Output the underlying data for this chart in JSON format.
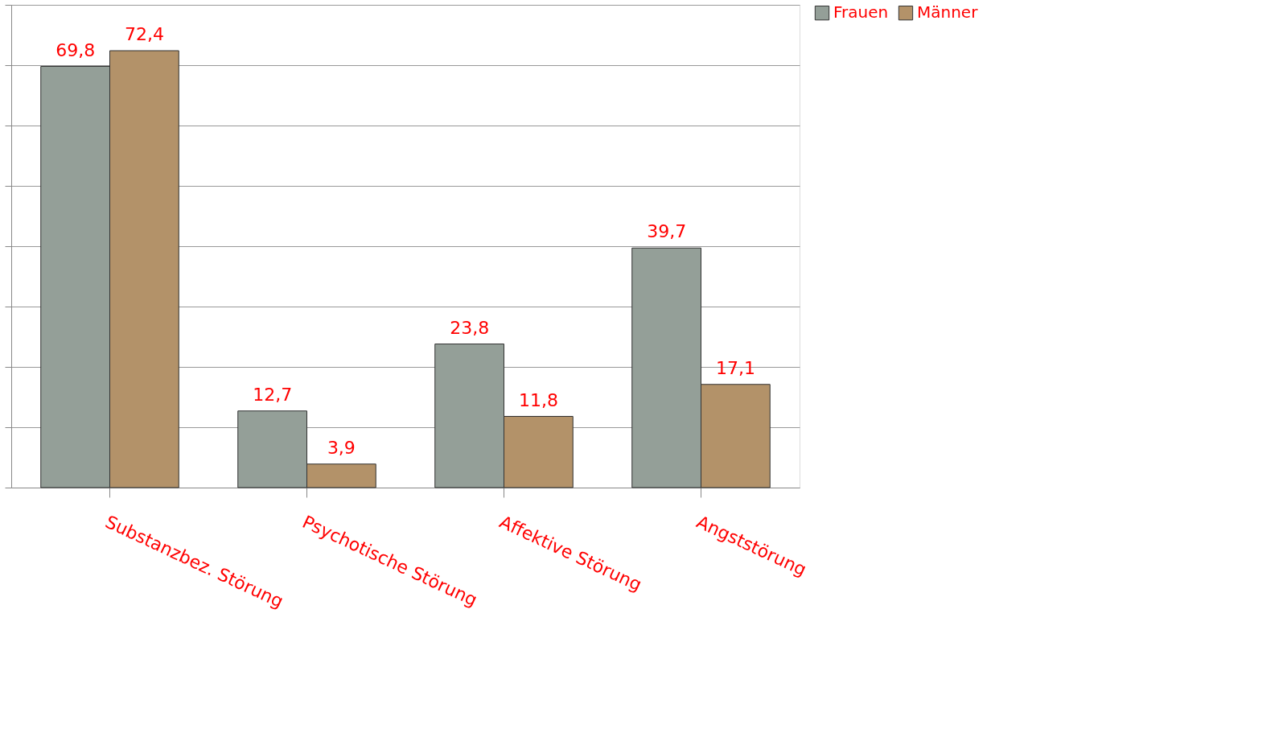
{
  "chart_data": {
    "type": "bar",
    "categories": [
      "Substanzbez. Störung",
      "Psychotische Störung",
      "Affektive Störung",
      "Angststörung"
    ],
    "series": [
      {
        "name": "Frauen",
        "color": "#949f98",
        "values": [
          69.8,
          12.7,
          23.8,
          39.7
        ],
        "value_labels": [
          "69,8",
          "12,7",
          "23,8",
          "39,7"
        ]
      },
      {
        "name": "Männer",
        "color": "#b39269",
        "values": [
          72.4,
          3.9,
          11.8,
          17.1
        ],
        "value_labels": [
          "72,4",
          "3,9",
          "11,8",
          "17,1"
        ]
      }
    ],
    "ylim": [
      0,
      80
    ],
    "yticks": [
      {
        "value": 0,
        "label": null
      },
      {
        "value": 10,
        "label": null
      },
      {
        "value": 20,
        "label": null
      },
      {
        "value": 30,
        "label": null
      },
      {
        "value": 40,
        "label": null
      },
      {
        "value": 50,
        "label": null
      },
      {
        "value": 60,
        "label": null
      },
      {
        "value": 70,
        "label": null
      },
      {
        "value": 80,
        "label": null
      }
    ],
    "tick_labels": "x",
    "grid": "y",
    "legend": "right"
  }
}
